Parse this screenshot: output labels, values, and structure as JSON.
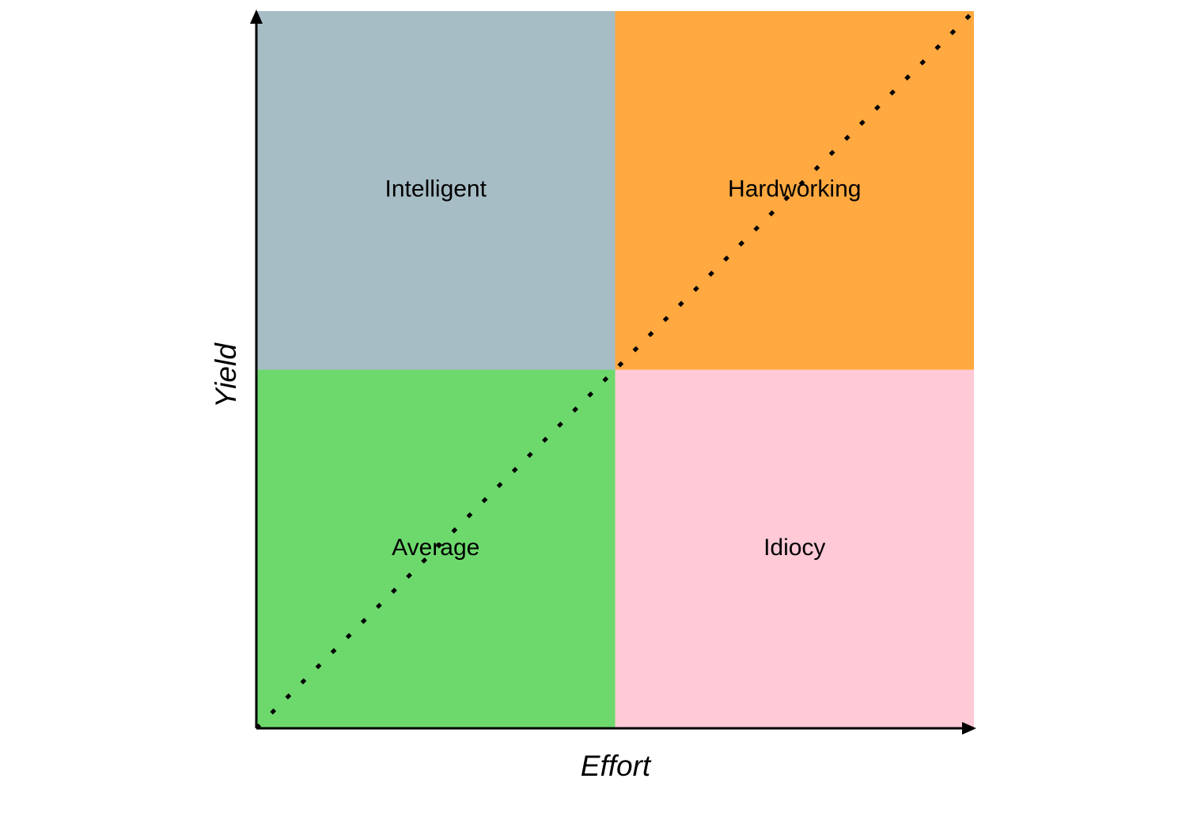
{
  "diagram": {
    "x_axis_label": "Effort",
    "y_axis_label": "Yield",
    "quadrants": [
      {
        "label": "Intelligent",
        "color": "#a7bdc6",
        "position": "top-left"
      },
      {
        "label": "Hardworking",
        "color": "#ffa940",
        "position": "top-right"
      },
      {
        "label": "Average",
        "color": "#6dd96d",
        "position": "bottom-left"
      },
      {
        "label": "Idiocy",
        "color": "#ffc9d6",
        "position": "bottom-right"
      }
    ]
  }
}
